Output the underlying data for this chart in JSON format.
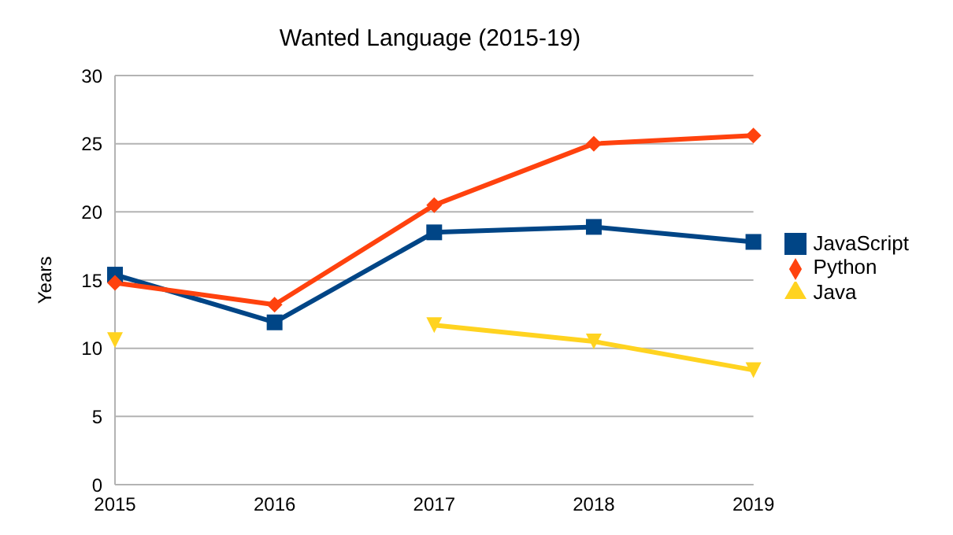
{
  "chart_data": {
    "type": "line",
    "title": "Wanted Language (2015-19)",
    "ylabel": "Years",
    "x": [
      2015,
      2016,
      2017,
      2018,
      2019
    ],
    "xlim": [
      2015,
      2019
    ],
    "xticks": [
      2015,
      2016,
      2017,
      2018,
      2019
    ],
    "ylim": [
      0,
      30
    ],
    "yticks": [
      0,
      5,
      10,
      15,
      20,
      25,
      30
    ],
    "grid": "y",
    "legend": "right",
    "line_style": "solid",
    "series": [
      {
        "name": "JavaScript",
        "color": "#004586",
        "marker": "square",
        "values": [
          15.4,
          11.9,
          18.5,
          18.9,
          17.8
        ]
      },
      {
        "name": "Python",
        "color": "#ff420e",
        "marker": "diamond",
        "values": [
          14.8,
          13.2,
          20.5,
          25.0,
          25.6
        ]
      },
      {
        "name": "Java",
        "color": "#ffd320",
        "marker": "triangle",
        "values": [
          10.6,
          null,
          11.7,
          10.5,
          8.4
        ]
      }
    ]
  }
}
